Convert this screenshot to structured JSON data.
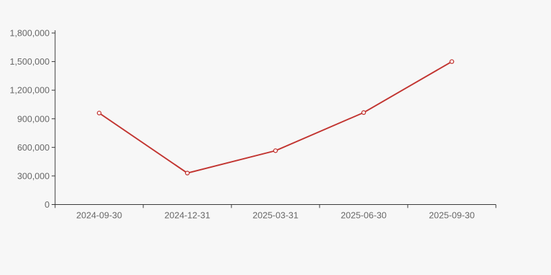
{
  "chart_data": {
    "type": "line",
    "title": "",
    "categories": [
      "2024-09-30",
      "2024-12-31",
      "2025-03-31",
      "2025-06-30",
      "2025-09-30"
    ],
    "series": [
      {
        "name": "series-1",
        "values": [
          960000,
          330000,
          565000,
          965000,
          1500000
        ]
      }
    ],
    "xlabel": "",
    "ylabel": "",
    "ylim": [
      0,
      1800000
    ],
    "ytick_interval": 300000,
    "ytick_labels": [
      "0",
      "300,000",
      "600,000",
      "900,000",
      "1,200,000",
      "1,500,000",
      "1,800,000"
    ],
    "grid": "off",
    "legend": "none",
    "marker_style": "hollow-circle"
  },
  "colors": {
    "background": "#f7f7f7",
    "line": "#c23531",
    "marker_fill": "#ffffff",
    "axis_line": "#333333",
    "tick_label": "#666666"
  }
}
